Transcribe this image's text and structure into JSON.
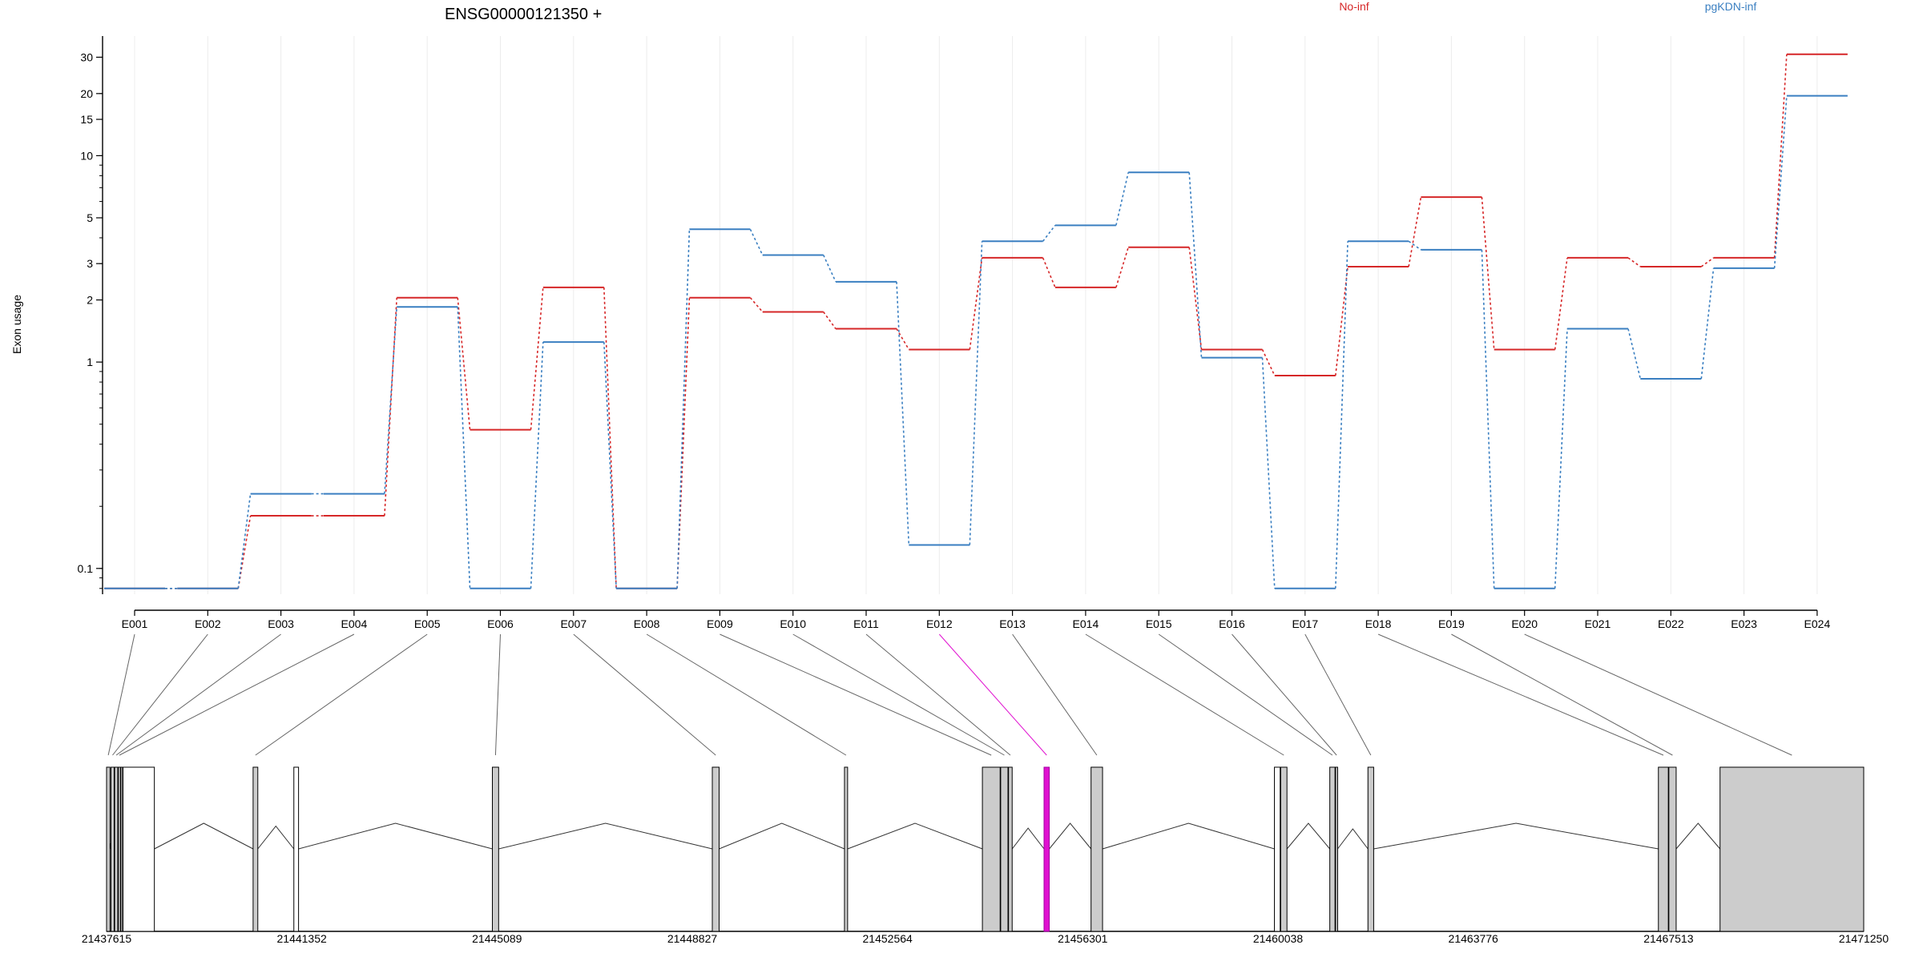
{
  "chart_data": {
    "type": "line",
    "title": "ENSG00000121350 +",
    "ylabel": "Exon usage",
    "yscale": "log",
    "ylim": [
      0.075,
      38
    ],
    "yticks": [
      0.1,
      1,
      2,
      3,
      5,
      10,
      15,
      20,
      30
    ],
    "ytick_labels": [
      "0.1",
      "1",
      "2",
      "3",
      "5",
      "10",
      "15",
      "20",
      "30"
    ],
    "grid": "vertical-light",
    "legend_placement": "top-right",
    "categories": [
      "E001",
      "E002",
      "E003",
      "E004",
      "E005",
      "E006",
      "E007",
      "E008",
      "E009",
      "E010",
      "E011",
      "E012",
      "E013",
      "E014",
      "E015",
      "E016",
      "E017",
      "E018",
      "E019",
      "E020",
      "E021",
      "E022",
      "E023",
      "E024"
    ],
    "series": [
      {
        "name": "No-inf",
        "color": "#d62728",
        "values": [
          0.08,
          0.08,
          0.18,
          0.18,
          2.05,
          0.47,
          2.3,
          0.08,
          2.05,
          1.75,
          1.45,
          1.15,
          3.2,
          2.3,
          3.6,
          1.15,
          0.86,
          2.9,
          6.3,
          1.15,
          3.2,
          2.9,
          3.2,
          31.0
        ]
      },
      {
        "name": "pgKDN-inf",
        "color": "#3a7fc1",
        "values": [
          0.08,
          0.08,
          0.23,
          0.23,
          1.85,
          0.08,
          1.25,
          0.08,
          4.4,
          3.3,
          2.45,
          0.13,
          3.85,
          4.6,
          8.3,
          1.05,
          0.08,
          3.85,
          3.5,
          0.08,
          1.45,
          0.83,
          2.85,
          19.5
        ]
      }
    ],
    "gene_model": {
      "axis_ticks": [
        "21437615",
        "21441352",
        "21445089",
        "21448827",
        "21452564",
        "21456301",
        "21460038",
        "21463776",
        "21467513",
        "21471250"
      ],
      "xlim": [
        21437615,
        21471250
      ],
      "exons": [
        {
          "start": 21437615,
          "end": 21437680,
          "tested": true
        },
        {
          "start": 21437700,
          "end": 21437760,
          "tested": true
        },
        {
          "start": 21437770,
          "end": 21437830,
          "tested": true
        },
        {
          "start": 21437840,
          "end": 21437880,
          "tested": true
        },
        {
          "start": 21437890,
          "end": 21437920,
          "tested": false
        },
        {
          "start": 21437930,
          "end": 21438530,
          "tested": false
        },
        {
          "start": 21440420,
          "end": 21440510,
          "tested": true
        },
        {
          "start": 21441200,
          "end": 21441290,
          "tested": false
        },
        {
          "start": 21445000,
          "end": 21445120,
          "tested": true
        },
        {
          "start": 21449210,
          "end": 21449340,
          "tested": true
        },
        {
          "start": 21451740,
          "end": 21451800,
          "tested": true
        },
        {
          "start": 21454380,
          "end": 21454720,
          "tested": true
        },
        {
          "start": 21454730,
          "end": 21454870,
          "tested": true
        },
        {
          "start": 21454880,
          "end": 21454950,
          "tested": true
        },
        {
          "start": 21455560,
          "end": 21455660,
          "tested": true,
          "highlight": true
        },
        {
          "start": 21456460,
          "end": 21456680,
          "tested": true
        },
        {
          "start": 21459970,
          "end": 21460080,
          "tested": false
        },
        {
          "start": 21460090,
          "end": 21460210,
          "tested": true
        },
        {
          "start": 21461030,
          "end": 21461130,
          "tested": true
        },
        {
          "start": 21461140,
          "end": 21461180,
          "tested": true
        },
        {
          "start": 21461760,
          "end": 21461870,
          "tested": true
        },
        {
          "start": 21467320,
          "end": 21467510,
          "tested": true
        },
        {
          "start": 21467520,
          "end": 21467660,
          "tested": true
        },
        {
          "start": 21468500,
          "end": 21471250,
          "tested": true
        }
      ],
      "highlight_color": "#e010d0"
    }
  }
}
